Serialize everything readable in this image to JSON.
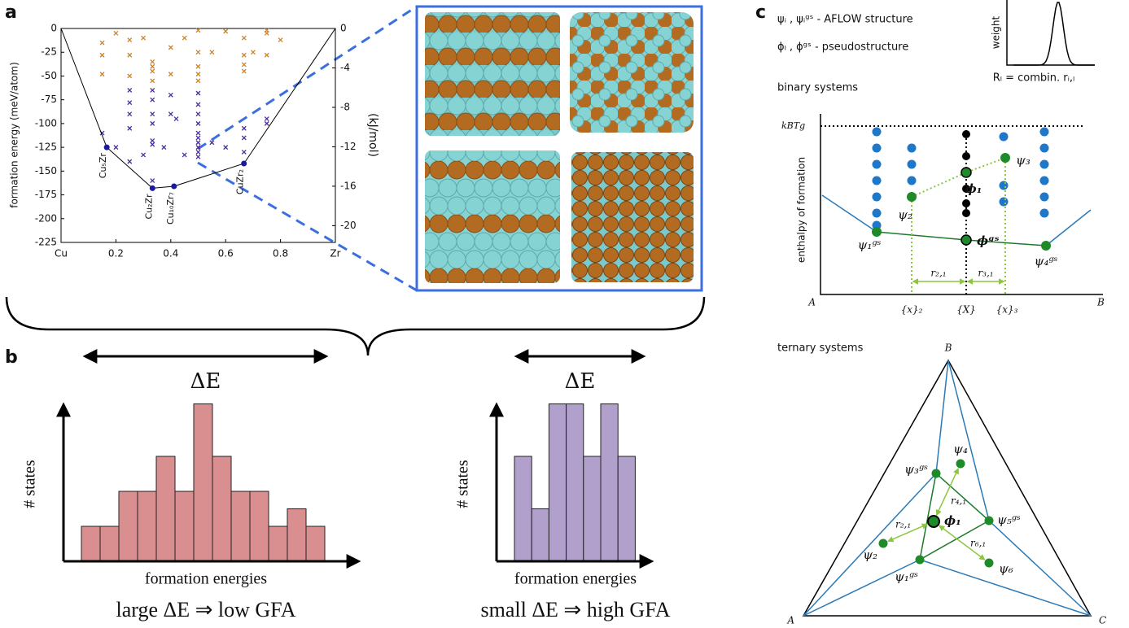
{
  "panel_labels": [
    "a",
    "b",
    "c"
  ],
  "chart_data": [
    {
      "type": "scatter",
      "ylabel": "formation energy (meV/atom)",
      "y2label": "(kJ/mol)",
      "xlim": [
        0,
        1
      ],
      "xticks": [
        {
          "value": 0,
          "label": "Cu"
        },
        0.2,
        0.4,
        0.6,
        0.8,
        {
          "value": 1,
          "label": "Zr"
        }
      ],
      "ylim": [
        -225,
        0
      ],
      "yticks": [
        0,
        -25,
        -50,
        -75,
        -100,
        -125,
        -150,
        -175,
        -200,
        -225
      ],
      "y2lim": [
        -21.7,
        0
      ],
      "y2ticks": [
        0,
        -4,
        -8,
        -12,
        -16,
        -20
      ],
      "series": [
        {
          "color": "#c8842e",
          "x": [
            0.15,
            0.15,
            0.15,
            0.2,
            0.25,
            0.25,
            0.25,
            0.3,
            0.333,
            0.333,
            0.333,
            0.333,
            0.4,
            0.4,
            0.45,
            0.5,
            0.5,
            0.5,
            0.5,
            0.5,
            0.55,
            0.6,
            0.667,
            0.667,
            0.667,
            0.667,
            0.7,
            0.75,
            0.75,
            0.75,
            0.8
          ],
          "values": [
            -15,
            -28,
            -48,
            -5,
            -12,
            -28,
            -50,
            -10,
            -35,
            -40,
            -45,
            -55,
            -20,
            -48,
            -10,
            -2,
            -25,
            -40,
            -48,
            -55,
            -25,
            -3,
            -10,
            -28,
            -38,
            -45,
            -25,
            -2,
            -5,
            -28,
            -12
          ]
        },
        {
          "color": "#4a2d9c",
          "x": [
            0.15,
            0.2,
            0.25,
            0.25,
            0.25,
            0.25,
            0.25,
            0.3,
            0.333,
            0.333,
            0.333,
            0.333,
            0.333,
            0.333,
            0.333,
            0.375,
            0.4,
            0.4,
            0.42,
            0.45,
            0.5,
            0.5,
            0.5,
            0.5,
            0.5,
            0.5,
            0.5,
            0.5,
            0.5,
            0.5,
            0.55,
            0.6,
            0.667,
            0.667,
            0.667,
            0.75,
            0.75
          ],
          "values": [
            -110,
            -125,
            -65,
            -78,
            -90,
            -105,
            -140,
            -133,
            -65,
            -75,
            -90,
            -100,
            -118,
            -122,
            -160,
            -125,
            -70,
            -90,
            -95,
            -133,
            -68,
            -80,
            -90,
            -100,
            -110,
            -115,
            -120,
            -125,
            -130,
            -135,
            -120,
            -125,
            -105,
            -115,
            -130,
            -100,
            -95
          ]
        },
        {
          "color": "#1a1a9a",
          "style": "hull",
          "x": [
            0,
            0.1667,
            0.3333,
            0.4118,
            0.6667,
            1
          ],
          "values": [
            0,
            -125,
            -168,
            -166,
            -142,
            0
          ],
          "labels": [
            null,
            "Cu₅Zr",
            "Cu₂Zr",
            "Cu₁₀Zr₇",
            "CuZr₂",
            null
          ]
        }
      ]
    },
    {
      "type": "histogram",
      "color": "#d98f8f",
      "ylim": [
        0,
        10
      ],
      "values": [
        2,
        2,
        4,
        4,
        6,
        4,
        9,
        6,
        4,
        4,
        2,
        3,
        2
      ],
      "ylabel": "# states",
      "xlabel": "formation energies",
      "span_label": "ΔE",
      "caption": "large ΔE ⇒ low GFA"
    },
    {
      "type": "histogram",
      "color": "#b1a0cb",
      "ylim": [
        0,
        10
      ],
      "values": [
        6,
        3,
        9,
        9,
        6,
        9,
        6
      ],
      "ylabel": "# states",
      "xlabel": "formation energies",
      "span_label": "ΔE",
      "caption": "small ΔE ⇒ high GFA"
    }
  ],
  "legend": [
    "ψᵢ , ψᵢᵍˢ - AFLOW structure",
    "ϕₗ , ϕᵍˢ - pseudostructure"
  ],
  "weight_plot": {
    "ylabel": "weight",
    "xlabel": "Rₗ = combin. rᵢ,ₗ"
  },
  "binary": {
    "title": "binary systems",
    "energy_label": "kBTg",
    "ylabel": "enthalpy of formation",
    "end_labels": [
      "A",
      "B"
    ],
    "point_labels": [
      "ψ₁ᵍˢ",
      "ψ₂",
      "ϕ₁",
      "ϕᵍˢ",
      "ψ₃",
      "ψ₄ᵍˢ"
    ],
    "distance_labels": [
      "r₂,₁",
      "r₃,₁"
    ],
    "composition_labels": [
      "{x}₂",
      "{X}",
      "{x}₃"
    ]
  },
  "ternary": {
    "title": "ternary systems",
    "vertex_labels": [
      "A",
      "B",
      "C"
    ],
    "point_labels": [
      "ψ₁ᵍˢ",
      "ψ₂",
      "ψ₃ᵍˢ",
      "ψ₄",
      "ψ₅ᵍˢ",
      "ψ₆",
      "ϕ₁"
    ],
    "distance_labels": [
      "r₂,₁",
      "r₄,₁",
      "r₆,₁"
    ]
  }
}
